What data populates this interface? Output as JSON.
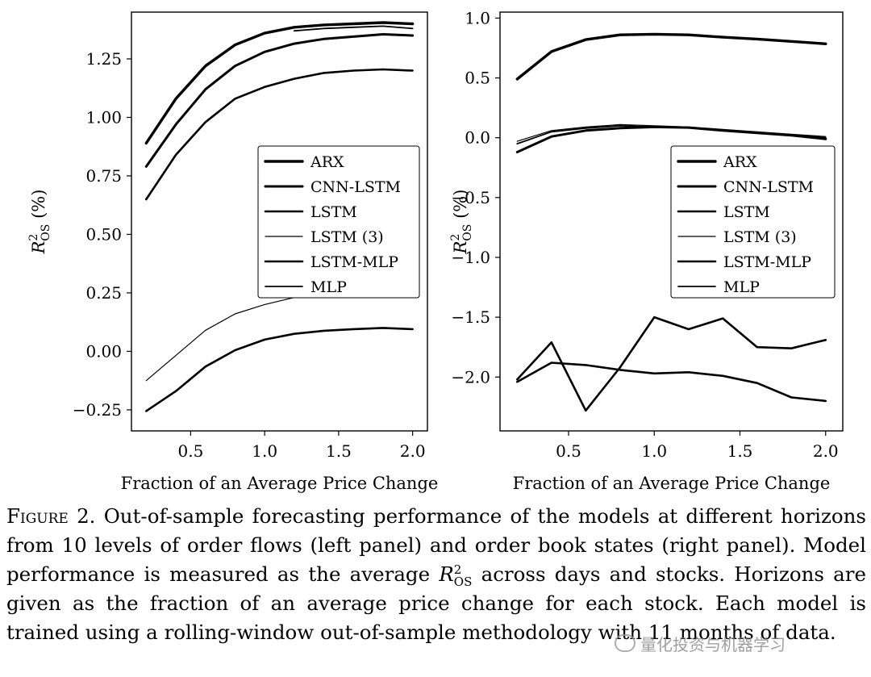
{
  "chart_data": [
    {
      "type": "line",
      "xlabel": "Fraction of an Average Price Change",
      "ylabel": "R²OS (%)",
      "ylabel_main": "R",
      "ylabel_sup": "2",
      "ylabel_sub": "OS",
      "ylabel_unit": " (%)",
      "xlim": [
        0.1,
        2.1
      ],
      "ylim": [
        -0.34,
        1.45
      ],
      "xticks": [
        "0.5",
        "1.0",
        "1.5",
        "2.0"
      ],
      "xtick_values": [
        0.5,
        1.0,
        1.5,
        2.0
      ],
      "yticks": [
        "−0.25",
        "0.00",
        "0.25",
        "0.50",
        "0.75",
        "1.00",
        "1.25"
      ],
      "ytick_values": [
        -0.25,
        0.0,
        0.25,
        0.5,
        0.75,
        1.0,
        1.25
      ],
      "legend": "center-right",
      "grid": false,
      "series": [
        {
          "name": "ARX",
          "width": 3.4,
          "x": [
            0.2,
            0.4,
            0.6,
            0.8,
            1.0,
            1.2,
            1.4,
            1.6,
            1.8,
            2.0
          ],
          "values": [
            0.89,
            1.08,
            1.22,
            1.31,
            1.36,
            1.385,
            1.395,
            1.4,
            1.405,
            1.4
          ]
        },
        {
          "name": "CNN-LSTM",
          "width": 3.0,
          "x": [
            0.2,
            0.4,
            0.6,
            0.8,
            1.0,
            1.2,
            1.4,
            1.6,
            1.8,
            2.0
          ],
          "values": [
            0.79,
            0.97,
            1.12,
            1.22,
            1.28,
            1.315,
            1.335,
            1.345,
            1.355,
            1.35
          ]
        },
        {
          "name": "LSTM",
          "width": 2.6,
          "x": [
            0.2,
            0.4,
            0.6,
            0.8,
            1.0,
            1.2,
            1.4,
            1.6,
            1.8,
            2.0
          ],
          "values": [
            0.65,
            0.84,
            0.98,
            1.08,
            1.13,
            1.165,
            1.19,
            1.2,
            1.205,
            1.2
          ]
        },
        {
          "name": "LSTM (3)",
          "width": 1.2,
          "x": [
            0.2,
            0.6,
            0.8,
            1.0,
            1.2,
            1.4,
            1.6,
            1.8,
            2.0
          ],
          "values": [
            -0.125,
            0.09,
            0.16,
            0.2,
            0.23,
            0.24,
            0.245,
            0.24,
            0.235
          ]
        },
        {
          "name": "LSTM-MLP",
          "width": 2.6,
          "x": [
            0.2,
            0.4,
            0.6,
            0.8,
            1.0,
            1.2,
            1.4,
            1.6,
            1.8,
            2.0
          ],
          "values": [
            -0.255,
            -0.17,
            -0.065,
            0.005,
            0.05,
            0.075,
            0.088,
            0.095,
            0.1,
            0.095
          ]
        },
        {
          "name": "MLP",
          "width": 1.8,
          "x": [
            1.2,
            1.4,
            1.6,
            1.8,
            2.0
          ],
          "values": [
            1.37,
            1.38,
            1.385,
            1.39,
            1.38
          ]
        }
      ]
    },
    {
      "type": "line",
      "xlabel": "Fraction of an Average Price Change",
      "ylabel": "R²OS (%)",
      "ylabel_main": "R",
      "ylabel_sup": "2",
      "ylabel_sub": "OS",
      "ylabel_unit": " (%)",
      "xlim": [
        0.1,
        2.1
      ],
      "ylim": [
        -2.45,
        1.05
      ],
      "xticks": [
        "0.5",
        "1.0",
        "1.5",
        "2.0"
      ],
      "xtick_values": [
        0.5,
        1.0,
        1.5,
        2.0
      ],
      "yticks": [
        "−2.0",
        "−1.5",
        "−1.0",
        "−0.5",
        "0.0",
        "0.5",
        "1.0"
      ],
      "ytick_values": [
        -2.0,
        -1.5,
        -1.0,
        -0.5,
        0.0,
        0.5,
        1.0
      ],
      "legend": "center-right",
      "grid": false,
      "series": [
        {
          "name": "ARX",
          "width": 3.4,
          "x": [
            0.2,
            0.4,
            0.6,
            0.8,
            1.0,
            1.2,
            1.4,
            1.6,
            1.8,
            2.0
          ],
          "values": [
            0.49,
            0.72,
            0.82,
            0.86,
            0.865,
            0.86,
            0.84,
            0.825,
            0.805,
            0.785
          ]
        },
        {
          "name": "CNN-LSTM",
          "width": 3.0,
          "x": [
            0.2,
            0.4,
            0.6,
            0.8,
            1.0,
            1.2,
            1.4,
            1.6,
            1.8,
            2.0
          ],
          "values": [
            -0.12,
            0.01,
            0.06,
            0.08,
            0.09,
            0.085,
            0.06,
            0.04,
            0.02,
            -0.01
          ]
        },
        {
          "name": "LSTM",
          "width": 2.6,
          "x": [
            0.2,
            0.4,
            0.6,
            0.8,
            1.0,
            1.2,
            1.4,
            1.6,
            1.8,
            2.0
          ],
          "values": [
            -2.02,
            -1.71,
            -2.28,
            -1.92,
            -1.5,
            -1.6,
            -1.51,
            -1.75,
            -1.76,
            -1.69
          ]
        },
        {
          "name": "LSTM (3)",
          "width": 1.2,
          "x": [
            0.2,
            0.4,
            0.6,
            0.8,
            1.0,
            1.2,
            1.4,
            1.6,
            1.8,
            2.0
          ],
          "values": [
            -0.03,
            0.06,
            0.09,
            0.11,
            0.1,
            0.09,
            0.07,
            0.05,
            0.03,
            0.01
          ]
        },
        {
          "name": "LSTM-MLP",
          "width": 2.6,
          "x": [
            0.2,
            0.4,
            0.6,
            0.8,
            1.0,
            1.2,
            1.4,
            1.6,
            1.8,
            2.0
          ],
          "values": [
            -2.04,
            -1.88,
            -1.9,
            -1.94,
            -1.97,
            -1.96,
            -1.99,
            -2.05,
            -2.17,
            -2.2
          ]
        },
        {
          "name": "MLP",
          "width": 1.8,
          "x": [
            0.2,
            0.4,
            0.6,
            0.8,
            1.0,
            1.2,
            1.4,
            1.6,
            1.8,
            2.0
          ],
          "values": [
            -0.05,
            0.05,
            0.08,
            0.1,
            0.09,
            0.085,
            0.065,
            0.045,
            0.025,
            0.0
          ]
        }
      ]
    }
  ],
  "caption": {
    "label": "Figure 2.",
    "text": " Out-of-sample forecasting performance of the models at different horizons from 10 levels of order flows (left panel) and order book states (right panel). Model performance is measured as the average ",
    "r_main": "R",
    "r_sup": "2",
    "r_sub": "OS",
    "text2": " across days and stocks. Horizons are given as the fraction of an average price change for each stock. Each model is trained using a rolling-window out-of-sample methodology with 11 months of data."
  },
  "watermark": {
    "text": "量化投资与机器学习",
    "icon": "wechat-icon"
  }
}
